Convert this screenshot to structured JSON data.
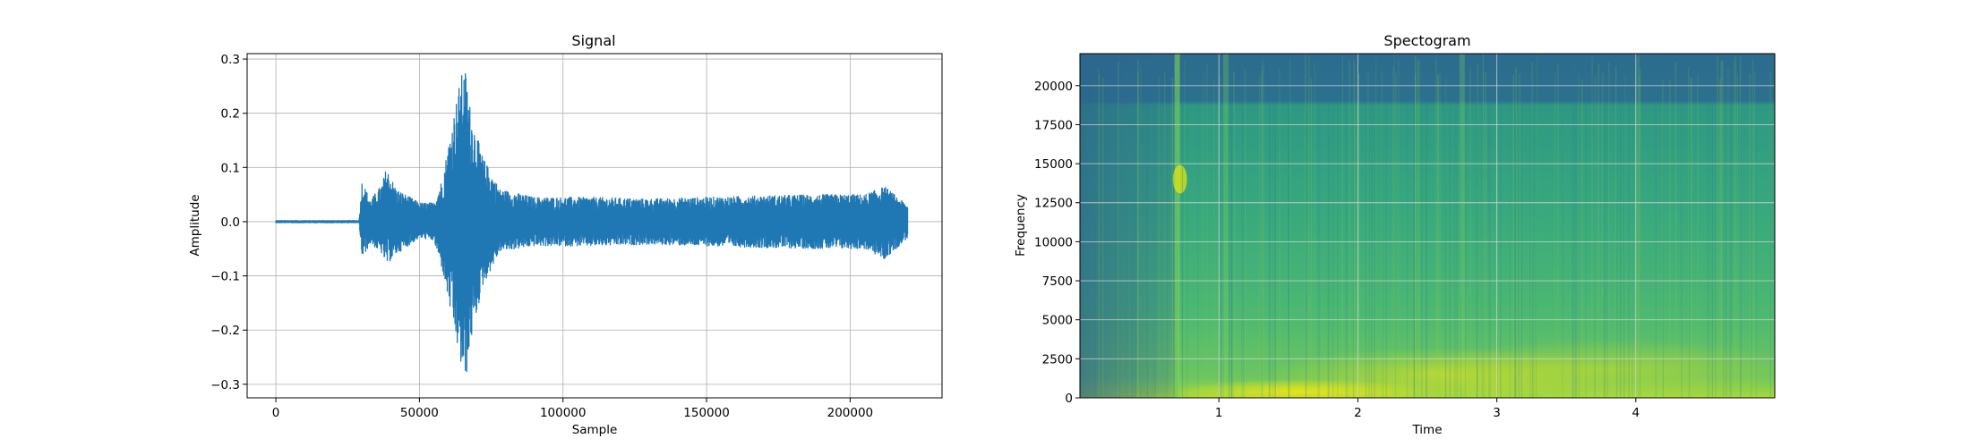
{
  "chart_data": [
    {
      "type": "line",
      "title": "Signal",
      "xlabel": "Sample",
      "ylabel": "Amplitude",
      "xlim": [
        -10000,
        232000
      ],
      "ylim": [
        -0.325,
        0.31
      ],
      "xticks": [
        0,
        50000,
        100000,
        150000,
        200000
      ],
      "xtick_labels": [
        "0",
        "50000",
        "100000",
        "150000",
        "200000"
      ],
      "yticks": [
        -0.3,
        -0.2,
        -0.1,
        0.0,
        0.1,
        0.2,
        0.3
      ],
      "ytick_labels": [
        "−0.3",
        "−0.2",
        "−0.1",
        "0.0",
        "0.1",
        "0.2",
        "0.3"
      ],
      "grid": true,
      "color": "#1f77b4",
      "series": [
        {
          "x": [
            0,
            29000,
            30000,
            33000,
            37000,
            38500,
            42000,
            50000,
            55000,
            58000,
            62000,
            64500,
            66000,
            68000,
            72000,
            78000,
            90000,
            110000,
            130000,
            150000,
            170000,
            190000,
            205000,
            212000,
            220000
          ],
          "upper": [
            0.002,
            0.002,
            0.075,
            0.04,
            0.07,
            0.1,
            0.06,
            0.035,
            0.035,
            0.08,
            0.2,
            0.27,
            0.28,
            0.2,
            0.12,
            0.06,
            0.045,
            0.045,
            0.042,
            0.045,
            0.048,
            0.05,
            0.05,
            0.065,
            0.03
          ],
          "lower": [
            -0.002,
            -0.002,
            -0.068,
            -0.04,
            -0.06,
            -0.08,
            -0.06,
            -0.03,
            -0.035,
            -0.09,
            -0.2,
            -0.27,
            -0.3,
            -0.22,
            -0.12,
            -0.055,
            -0.045,
            -0.045,
            -0.042,
            -0.045,
            -0.048,
            -0.05,
            -0.05,
            -0.07,
            -0.03
          ]
        }
      ]
    },
    {
      "type": "heatmap",
      "title": "Spectogram",
      "xlabel": "Time",
      "ylabel": "Frequency",
      "xlim": [
        0,
        5.0
      ],
      "ylim": [
        0,
        22050
      ],
      "xticks": [
        1,
        2,
        3,
        4
      ],
      "xtick_labels": [
        "1",
        "2",
        "3",
        "4"
      ],
      "yticks": [
        0,
        2500,
        5000,
        7500,
        10000,
        12500,
        15000,
        17500,
        20000
      ],
      "ytick_labels": [
        "0",
        "2500",
        "5000",
        "7500",
        "10000",
        "12500",
        "15000",
        "17500",
        "20000"
      ],
      "grid": true,
      "colormap": "viridis",
      "bright_events_time": [
        0.7,
        1.05,
        2.75
      ],
      "high_band_cutoff_hz": 19000
    }
  ]
}
